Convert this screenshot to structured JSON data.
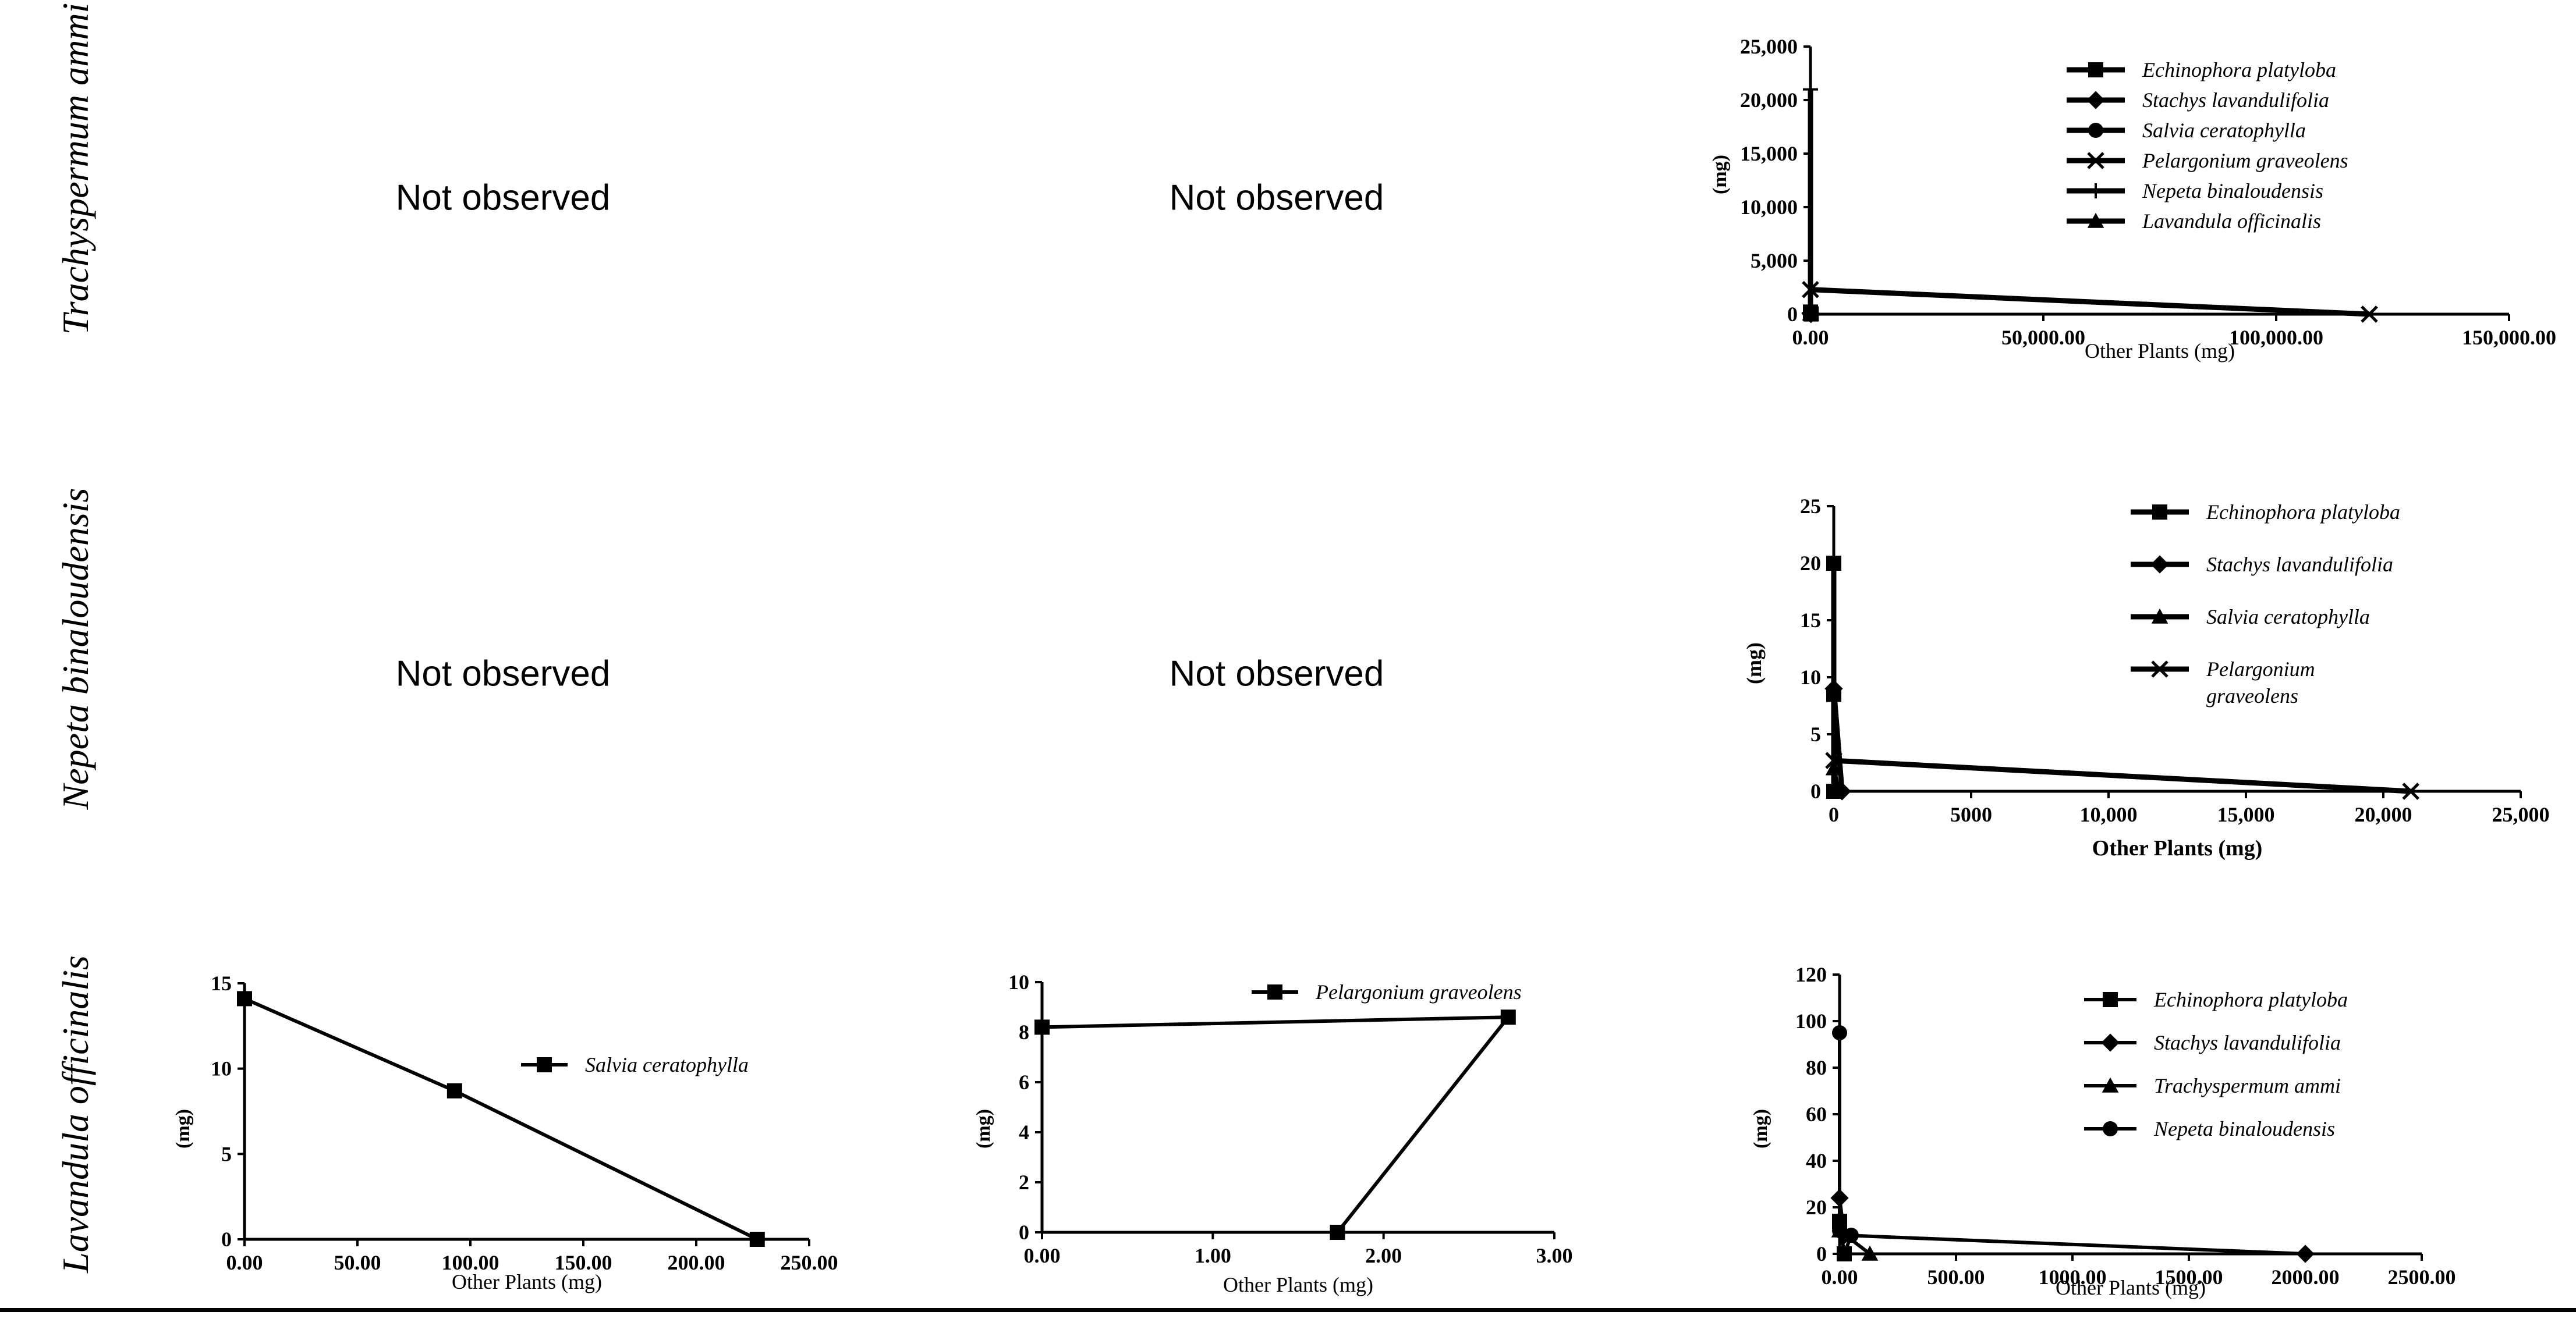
{
  "row_labels": [
    "Trachyspermum ammi",
    "Nepeta binaloudensis",
    "Lavandula officinalis"
  ],
  "not_observed": [
    "Not observed",
    "Not observed",
    "Not observed",
    "Not observed"
  ],
  "chart_data": [
    {
      "id": "c1",
      "type": "line",
      "row": "Trachyspermum ammi",
      "xlabel": "Other Plants (mg)",
      "ylabel": "(mg)",
      "xlim": [
        0,
        150000
      ],
      "ylim": [
        0,
        25000
      ],
      "xticks": [
        0,
        50000,
        100000,
        150000
      ],
      "xtick_labels": [
        "0.00",
        "50,000.00",
        "100,000.00",
        "150,000.00"
      ],
      "yticks": [
        0,
        5000,
        10000,
        15000,
        20000,
        25000
      ],
      "ytick_labels": [
        "0",
        "5,000",
        "10,000",
        "15,000",
        "20,000",
        "25,000"
      ],
      "legend": [
        "Echinophora platyloba",
        "Stachys lavandulifolia",
        "Salvia ceratophylla",
        "Pelargonium graveolens",
        "Nepeta binaloudensis",
        "Lavandula officinalis"
      ],
      "series": [
        {
          "name": "Echinophora platyloba",
          "marker": "square",
          "points": [
            [
              0,
              200
            ],
            [
              150,
              20
            ]
          ]
        },
        {
          "name": "Stachys lavandulifolia",
          "marker": "diamond",
          "points": [
            [
              0,
              100
            ],
            [
              100,
              10
            ]
          ]
        },
        {
          "name": "Salvia ceratophylla",
          "marker": "circle",
          "points": [
            [
              0,
              150
            ],
            [
              120,
              30
            ]
          ]
        },
        {
          "name": "Pelargonium graveolens",
          "marker": "x",
          "points": [
            [
              0,
              2300
            ],
            [
              120000,
              0
            ]
          ]
        },
        {
          "name": "Nepeta binaloudensis",
          "marker": "plus",
          "points": [
            [
              0,
              21000
            ],
            [
              0,
              0
            ]
          ]
        },
        {
          "name": "Lavandula officinalis",
          "marker": "triangle",
          "points": [
            [
              0,
              80
            ],
            [
              60,
              5
            ]
          ]
        }
      ]
    },
    {
      "id": "c2",
      "type": "line",
      "row": "Nepeta binaloudensis",
      "xlabel": "Other Plants (mg)",
      "ylabel": "(mg)",
      "xlim": [
        0,
        25000
      ],
      "ylim": [
        0,
        25
      ],
      "xticks": [
        0,
        5000,
        10000,
        15000,
        20000,
        25000
      ],
      "xtick_labels": [
        "0",
        "5000",
        "10,000",
        "15,000",
        "20,000",
        "25,000"
      ],
      "yticks": [
        0,
        5,
        10,
        15,
        20,
        25
      ],
      "ytick_labels": [
        "0",
        "5",
        "10",
        "15",
        "20",
        "25"
      ],
      "legend": [
        "Echinophora platyloba",
        "Stachys lavandulifolia",
        "Salvia ceratophylla",
        "Pelargonium graveolens"
      ],
      "series": [
        {
          "name": "Echinophora platyloba",
          "marker": "square",
          "points": [
            [
              0,
              20
            ],
            [
              0,
              8.5
            ],
            [
              0,
              0
            ]
          ]
        },
        {
          "name": "Stachys lavandulifolia",
          "marker": "diamond",
          "points": [
            [
              0,
              9
            ],
            [
              300,
              0
            ]
          ]
        },
        {
          "name": "Salvia ceratophylla",
          "marker": "triangle",
          "points": [
            [
              0,
              2
            ],
            [
              100,
              0.5
            ]
          ]
        },
        {
          "name": "Pelargonium graveolens",
          "marker": "x",
          "points": [
            [
              0,
              2.7
            ],
            [
              21000,
              0
            ]
          ]
        }
      ]
    },
    {
      "id": "c3",
      "type": "line",
      "row": "Lavandula officinalis",
      "xlabel": "Other Plants (mg)",
      "ylabel": "(mg)",
      "xlim": [
        0,
        250
      ],
      "ylim": [
        0,
        15
      ],
      "xticks": [
        0,
        50,
        100,
        150,
        200,
        250
      ],
      "xtick_labels": [
        "0.00",
        "50.00",
        "100.00",
        "150.00",
        "200.00",
        "250.00"
      ],
      "yticks": [
        0,
        5,
        10,
        15
      ],
      "ytick_labels": [
        "0",
        "5",
        "10",
        "15"
      ],
      "legend": [
        "Salvia ceratophylla"
      ],
      "series": [
        {
          "name": "Salvia ceratophylla",
          "marker": "square",
          "points": [
            [
              0,
              14.1
            ],
            [
              93,
              8.7
            ],
            [
              227,
              0
            ]
          ]
        }
      ]
    },
    {
      "id": "c4",
      "type": "line",
      "row": "Lavandula officinalis",
      "xlabel": "Other Plants (mg)",
      "ylabel": "(mg)",
      "xlim": [
        0,
        3
      ],
      "ylim": [
        0,
        10
      ],
      "xticks": [
        0,
        1,
        2,
        3
      ],
      "xtick_labels": [
        "0.00",
        "1.00",
        "2.00",
        "3.00"
      ],
      "yticks": [
        0,
        2,
        4,
        6,
        8,
        10
      ],
      "ytick_labels": [
        "0",
        "2",
        "4",
        "6",
        "8",
        "10"
      ],
      "legend": [
        "Pelargonium graveolens"
      ],
      "series": [
        {
          "name": "Pelargonium graveolens",
          "marker": "square",
          "points": [
            [
              0,
              8.2
            ],
            [
              2.73,
              8.6
            ],
            [
              1.73,
              0
            ]
          ]
        }
      ]
    },
    {
      "id": "c5",
      "type": "line",
      "row": "Lavandula officinalis",
      "xlabel": "Other Plants (mg)",
      "ylabel": "(mg)",
      "xlim": [
        0,
        2500
      ],
      "ylim": [
        0,
        120
      ],
      "xticks": [
        0,
        500,
        1000,
        1500,
        2000,
        2500
      ],
      "xtick_labels": [
        "0.00",
        "500.00",
        "1000.00",
        "1500.00",
        "2000.00",
        "2500.00"
      ],
      "yticks": [
        0,
        20,
        40,
        60,
        80,
        100,
        120
      ],
      "ytick_labels": [
        "0",
        "20",
        "40",
        "60",
        "80",
        "100",
        "120"
      ],
      "legend": [
        "Echinophora platyloba",
        "Stachys lavandulifolia",
        "Trachyspermum ammi",
        "Nepeta binaloudensis"
      ],
      "series": [
        {
          "name": "Echinophora platyloba",
          "marker": "square",
          "points": [
            [
              0,
              14
            ],
            [
              20,
              0
            ]
          ]
        },
        {
          "name": "Stachys lavandulifolia",
          "marker": "diamond",
          "points": [
            [
              0,
              24
            ],
            [
              20,
              8
            ],
            [
              2000,
              0
            ]
          ]
        },
        {
          "name": "Trachyspermum ammi",
          "marker": "triangle",
          "points": [
            [
              0,
              10
            ],
            [
              130,
              0
            ]
          ]
        },
        {
          "name": "Nepeta binaloudensis",
          "marker": "circle",
          "points": [
            [
              0,
              95
            ],
            [
              0,
              10
            ],
            [
              50,
              8
            ],
            [
              20,
              0
            ]
          ]
        }
      ]
    }
  ]
}
